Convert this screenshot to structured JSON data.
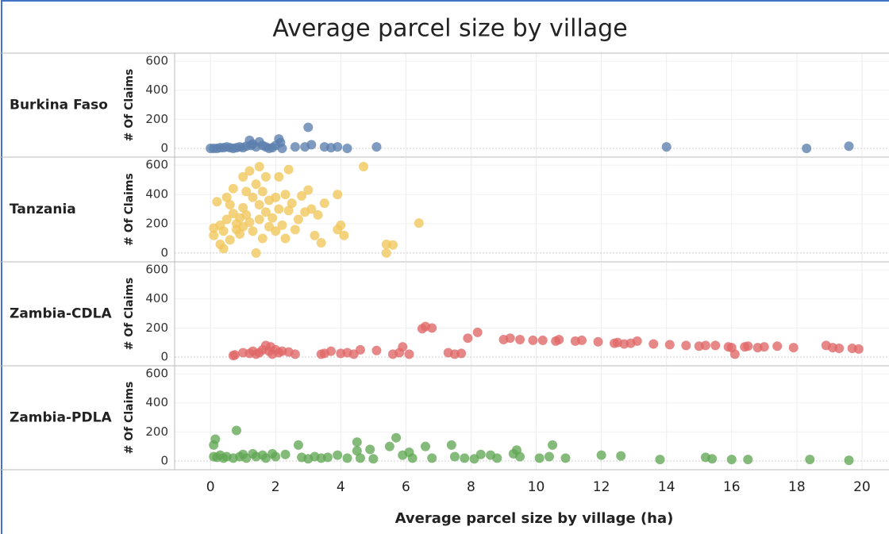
{
  "title": "Average parcel size by village",
  "chart_data": [
    {
      "type": "scatter",
      "name": "Burkina Faso",
      "y_label": "# Of Claims",
      "color": "#5b7fad",
      "xlim": [
        -1.1,
        20.83
      ],
      "xticks": [
        0,
        2,
        4,
        6,
        8,
        10,
        12,
        14,
        16,
        18,
        20
      ],
      "ylim": [
        -60,
        655
      ],
      "yticks": [
        0,
        200,
        400,
        600
      ],
      "x": [
        0,
        0.1,
        0.2,
        0.3,
        0.4,
        0.5,
        0.6,
        0.7,
        0.8,
        0.9,
        1.0,
        1.1,
        1.2,
        1.25,
        1.3,
        1.4,
        1.5,
        1.6,
        1.7,
        1.8,
        1.9,
        2.0,
        2.1,
        2.15,
        2.2,
        2.6,
        2.9,
        3.0,
        3.1,
        3.5,
        3.7,
        3.9,
        4.2,
        5.1,
        14.0,
        18.3,
        19.6
      ],
      "values": [
        0,
        0,
        0,
        5,
        5,
        10,
        5,
        0,
        5,
        10,
        5,
        15,
        55,
        20,
        30,
        10,
        45,
        20,
        10,
        0,
        5,
        20,
        65,
        40,
        0,
        10,
        10,
        145,
        25,
        10,
        5,
        10,
        0,
        10,
        10,
        0,
        15
      ]
    },
    {
      "type": "scatter",
      "name": "Tanzania",
      "y_label": "# Of Claims",
      "color": "#f1c75b",
      "xlim": [
        -1.1,
        20.83
      ],
      "xticks": [
        0,
        2,
        4,
        6,
        8,
        10,
        12,
        14,
        16,
        18,
        20
      ],
      "ylim": [
        -60,
        655
      ],
      "yticks": [
        0,
        200,
        400,
        600
      ],
      "x": [
        0.1,
        0.1,
        0.2,
        0.3,
        0.3,
        0.4,
        0.4,
        0.5,
        0.5,
        0.6,
        0.6,
        0.7,
        0.7,
        0.8,
        0.8,
        0.9,
        0.9,
        1.0,
        1.0,
        1.0,
        1.1,
        1.1,
        1.2,
        1.2,
        1.3,
        1.3,
        1.4,
        1.4,
        1.5,
        1.5,
        1.5,
        1.6,
        1.6,
        1.7,
        1.7,
        1.8,
        1.8,
        1.9,
        2.0,
        2.0,
        2.1,
        2.1,
        2.2,
        2.3,
        2.3,
        2.4,
        2.4,
        2.5,
        2.6,
        2.7,
        2.8,
        2.9,
        3.0,
        3.1,
        3.2,
        3.3,
        3.4,
        3.5,
        3.9,
        3.9,
        4.0,
        4.1,
        4.7,
        5.4,
        5.4,
        5.6,
        6.4
      ],
      "values": [
        170,
        120,
        350,
        190,
        60,
        30,
        150,
        380,
        230,
        330,
        90,
        440,
        270,
        160,
        200,
        240,
        130,
        520,
        310,
        180,
        420,
        260,
        560,
        210,
        380,
        150,
        470,
        0,
        590,
        330,
        230,
        420,
        100,
        520,
        280,
        360,
        180,
        240,
        380,
        150,
        300,
        520,
        190,
        400,
        100,
        570,
        290,
        340,
        160,
        230,
        390,
        280,
        430,
        300,
        120,
        260,
        70,
        340,
        400,
        160,
        190,
        120,
        590,
        60,
        0,
        55,
        205
      ]
    },
    {
      "type": "scatter",
      "name": "Zambia-CDLA",
      "y_label": "# Of Claims",
      "color": "#e06666",
      "xlim": [
        -1.1,
        20.83
      ],
      "xticks": [
        0,
        2,
        4,
        6,
        8,
        10,
        12,
        14,
        16,
        18,
        20
      ],
      "ylim": [
        -60,
        655
      ],
      "yticks": [
        0,
        200,
        400,
        600
      ],
      "x": [
        0.7,
        0.75,
        1.0,
        1.2,
        1.3,
        1.4,
        1.5,
        1.6,
        1.7,
        1.8,
        1.85,
        1.9,
        2.0,
        2.1,
        2.2,
        2.4,
        2.6,
        3.4,
        3.5,
        3.7,
        4.0,
        4.2,
        4.4,
        4.6,
        5.1,
        5.6,
        5.8,
        5.9,
        6.1,
        6.5,
        6.6,
        6.8,
        7.3,
        7.5,
        7.7,
        7.9,
        8.2,
        9.0,
        9.2,
        9.5,
        9.9,
        10.2,
        10.6,
        10.7,
        11.2,
        11.4,
        11.9,
        12.4,
        12.5,
        12.7,
        12.9,
        13.1,
        13.6,
        14.1,
        14.6,
        15.0,
        15.2,
        15.5,
        15.9,
        16.0,
        16.1,
        16.4,
        16.5,
        16.8,
        17.0,
        17.4,
        17.9,
        18.9,
        19.1,
        19.3,
        19.7,
        19.9
      ],
      "values": [
        10,
        15,
        30,
        25,
        40,
        20,
        30,
        50,
        80,
        40,
        70,
        20,
        50,
        30,
        40,
        35,
        20,
        20,
        25,
        40,
        25,
        30,
        20,
        50,
        45,
        20,
        30,
        70,
        20,
        195,
        210,
        200,
        30,
        20,
        25,
        130,
        170,
        120,
        130,
        120,
        115,
        115,
        110,
        120,
        110,
        115,
        105,
        95,
        100,
        90,
        95,
        110,
        90,
        85,
        80,
        75,
        80,
        80,
        70,
        65,
        20,
        70,
        75,
        65,
        70,
        75,
        65,
        80,
        65,
        60,
        60,
        55
      ]
    },
    {
      "type": "scatter",
      "name": "Zambia-PDLA",
      "y_label": "# Of Claims",
      "color": "#62a755",
      "x_label": "Average parcel size by village (ha)",
      "xlim": [
        -1.1,
        20.83
      ],
      "xticks": [
        0,
        2,
        4,
        6,
        8,
        10,
        12,
        14,
        16,
        18,
        20
      ],
      "ylim": [
        -60,
        655
      ],
      "yticks": [
        0,
        200,
        400,
        600
      ],
      "x": [
        0.1,
        0.15,
        0.1,
        0.2,
        0.3,
        0.4,
        0.5,
        0.7,
        0.8,
        0.9,
        1.0,
        1.1,
        1.3,
        1.4,
        1.6,
        1.7,
        1.9,
        2.0,
        2.3,
        2.7,
        2.8,
        3.0,
        3.2,
        3.4,
        3.6,
        3.9,
        4.2,
        4.5,
        4.5,
        4.6,
        4.9,
        5.0,
        5.5,
        5.7,
        5.9,
        6.1,
        6.2,
        6.6,
        6.8,
        7.4,
        7.5,
        7.8,
        8.1,
        8.3,
        8.6,
        8.8,
        9.3,
        9.4,
        9.5,
        10.1,
        10.4,
        10.5,
        10.9,
        12.0,
        12.6,
        13.8,
        15.2,
        15.4,
        16.0,
        16.5,
        18.4,
        19.6
      ],
      "values": [
        110,
        150,
        30,
        25,
        40,
        20,
        30,
        20,
        210,
        30,
        45,
        20,
        50,
        30,
        40,
        20,
        50,
        30,
        45,
        110,
        25,
        15,
        30,
        20,
        25,
        40,
        20,
        130,
        70,
        20,
        80,
        15,
        100,
        160,
        40,
        60,
        20,
        100,
        20,
        110,
        30,
        20,
        15,
        45,
        40,
        20,
        50,
        75,
        30,
        20,
        30,
        110,
        20,
        40,
        35,
        10,
        25,
        15,
        10,
        10,
        10,
        5
      ]
    }
  ]
}
